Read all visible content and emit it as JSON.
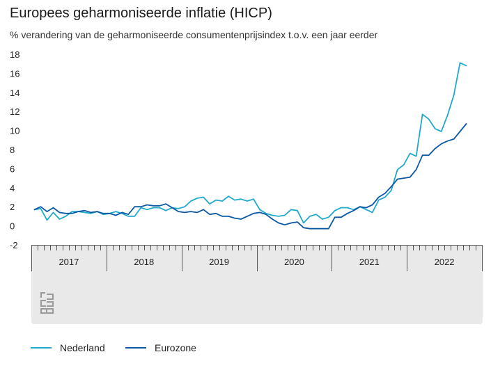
{
  "title": "Europees geharmoniseerde inflatie (HICP)",
  "subtitle": "% verandering van de geharmoniseerde consumentenprijsindex t.o.v. een jaar eerder",
  "colors": {
    "nederland": "#21a8cc",
    "eurozone": "#0b58a4",
    "axis_band": "#e9e9e9",
    "logo": "#9a9a9a"
  },
  "logo_icon": "cbs-logo-icon",
  "chart_data": {
    "type": "line",
    "ylim": [
      -2,
      18
    ],
    "yticks": [
      -2,
      0,
      2,
      4,
      6,
      8,
      10,
      12,
      14,
      16,
      18
    ],
    "x_start": "2017-01",
    "years": [
      "2017",
      "2018",
      "2019",
      "2020",
      "2021",
      "2022"
    ],
    "grid": false,
    "legend_position": "bottom",
    "series": [
      {
        "name": "Nederland",
        "values": [
          1.7,
          1.8,
          0.6,
          1.4,
          0.7,
          1.0,
          1.5,
          1.5,
          1.4,
          1.3,
          1.5,
          1.2,
          1.3,
          1.5,
          1.3,
          1.0,
          1.0,
          1.9,
          1.7,
          1.9,
          1.9,
          1.6,
          1.9,
          1.8,
          2.0,
          2.6,
          2.9,
          3.0,
          2.3,
          2.7,
          2.6,
          3.1,
          2.7,
          2.8,
          2.6,
          2.8,
          1.7,
          1.3,
          1.1,
          1.0,
          1.1,
          1.7,
          1.6,
          0.3,
          1.0,
          1.2,
          0.7,
          0.9,
          1.6,
          1.9,
          1.9,
          1.7,
          2.0,
          1.7,
          1.4,
          2.7,
          3.0,
          3.7,
          5.9,
          6.4,
          7.6,
          7.3,
          11.7,
          11.2,
          10.2,
          9.9,
          11.6,
          13.7,
          17.1,
          16.8
        ]
      },
      {
        "name": "Eurozone",
        "values": [
          1.7,
          2.0,
          1.5,
          1.9,
          1.4,
          1.3,
          1.3,
          1.5,
          1.6,
          1.4,
          1.5,
          1.3,
          1.3,
          1.1,
          1.4,
          1.2,
          2.0,
          2.0,
          2.2,
          2.1,
          2.1,
          2.3,
          1.9,
          1.5,
          1.4,
          1.5,
          1.4,
          1.7,
          1.2,
          1.3,
          1.0,
          1.0,
          0.8,
          0.7,
          1.0,
          1.3,
          1.4,
          1.2,
          0.7,
          0.3,
          0.1,
          0.3,
          0.4,
          -0.2,
          -0.3,
          -0.3,
          -0.3,
          -0.3,
          0.9,
          0.9,
          1.3,
          1.6,
          2.0,
          1.9,
          2.2,
          3.0,
          3.4,
          4.1,
          4.9,
          5.0,
          5.1,
          5.9,
          7.4,
          7.4,
          8.1,
          8.6,
          8.9,
          9.1,
          9.9,
          10.7
        ]
      }
    ]
  }
}
